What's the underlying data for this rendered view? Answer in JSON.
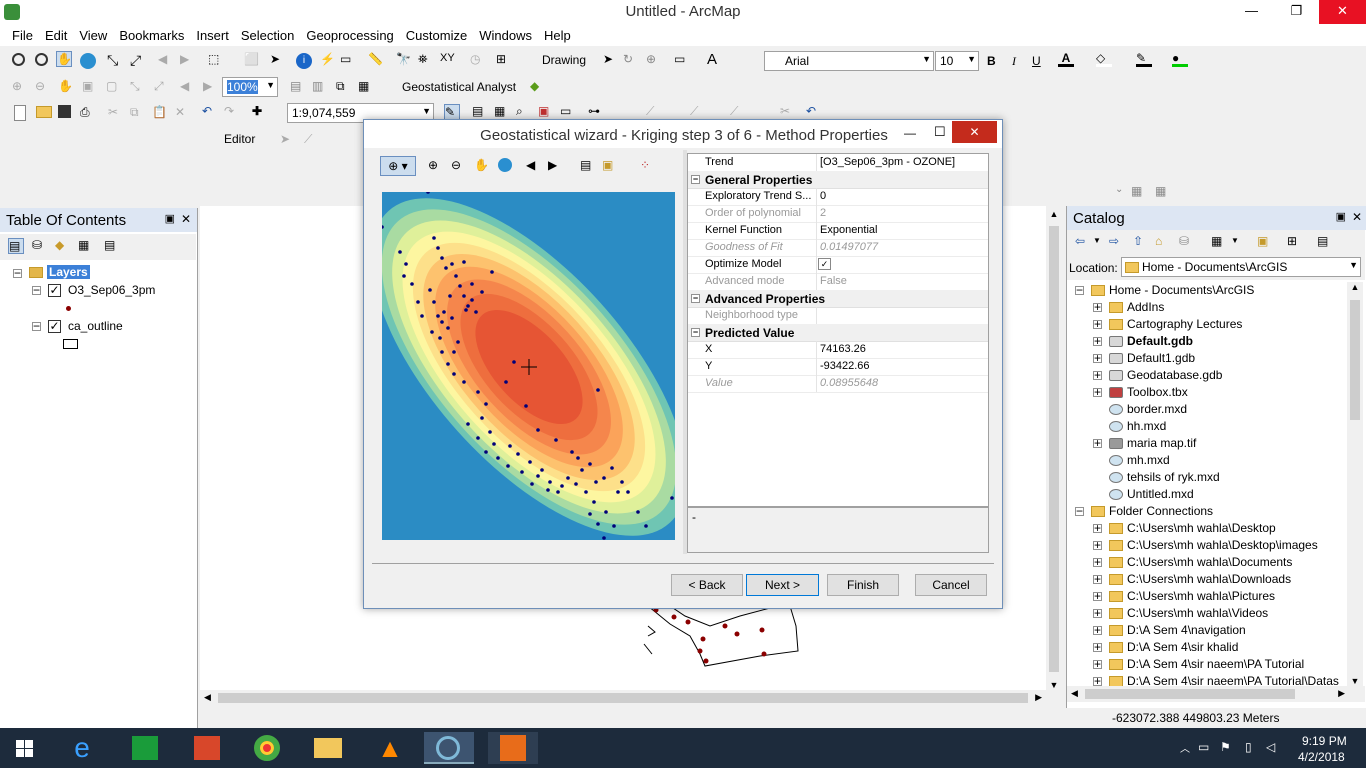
{
  "window": {
    "title": "Untitled - ArcMap",
    "minimize": "—",
    "maximize": "❐",
    "close": "✕"
  },
  "menu": [
    "File",
    "Edit",
    "View",
    "Bookmarks",
    "Insert",
    "Selection",
    "Geoprocessing",
    "Customize",
    "Windows",
    "Help"
  ],
  "toolbar": {
    "drawing_label": "Drawing",
    "font_name": "Arial",
    "font_size": "10",
    "bold": "B",
    "italic": "I",
    "underline": "U",
    "text_tool": "A",
    "zoom_pct": "100%",
    "geostat_label": "Geostatistical Analyst",
    "scale": "1:9,074,559",
    "editor_label": "Editor"
  },
  "toc": {
    "title": "Table Of Contents",
    "pin": "▣",
    "close": "✕",
    "root": "Layers",
    "layers": [
      {
        "name": "O3_Sep06_3pm",
        "checked": true
      },
      {
        "name": "ca_outline",
        "checked": true
      }
    ]
  },
  "dialog": {
    "title": "Geostatistical wizard - Kriging step 3 of 6 - Method Properties",
    "min": "—",
    "max": "☐",
    "close": "✕",
    "properties": [
      {
        "type": "row",
        "key": "Trend",
        "value": "[O3_Sep06_3pm - OZONE]"
      },
      {
        "type": "header",
        "key": "General Properties"
      },
      {
        "type": "row",
        "key": "Exploratory Trend S...",
        "value": "0"
      },
      {
        "type": "dis",
        "key": "Order of polynomial",
        "value": "2"
      },
      {
        "type": "row",
        "key": "Kernel Function",
        "value": "Exponential"
      },
      {
        "type": "disi",
        "key": "Goodness of Fit",
        "value": "0.01497077"
      },
      {
        "type": "row",
        "key": "Optimize Model",
        "value": ""
      },
      {
        "type": "dis",
        "key": "Advanced mode",
        "value": "False"
      },
      {
        "type": "header",
        "key": "Advanced Properties"
      },
      {
        "type": "dis",
        "key": "Neighborhood type",
        "value": ""
      },
      {
        "type": "header",
        "key": "Predicted Value"
      },
      {
        "type": "row",
        "key": "X",
        "value": "74163.26"
      },
      {
        "type": "row",
        "key": "Y",
        "value": "-93422.66"
      },
      {
        "type": "disi",
        "key": "Value",
        "value": "0.08955648"
      }
    ],
    "description": "-",
    "buttons": {
      "back": "< Back",
      "next": "Next >",
      "finish": "Finish",
      "cancel": "Cancel"
    }
  },
  "catalog": {
    "title": "Catalog",
    "pin": "▣",
    "close": "✕",
    "location_label": "Location:",
    "location_value": "Home - Documents\\ArcGIS",
    "home": "Home - Documents\\ArcGIS",
    "items": [
      "AddIns",
      "Cartography Lectures",
      "Default.gdb",
      "Default1.gdb",
      "Geodatabase.gdb",
      "Toolbox.tbx",
      "border.mxd",
      "hh.mxd",
      "maria map.tif",
      "mh.mxd",
      "tehsils of ryk.mxd",
      "Untitled.mxd"
    ],
    "folder_connections": "Folder Connections",
    "folders": [
      "C:\\Users\\mh wahla\\Desktop",
      "C:\\Users\\mh wahla\\Desktop\\images",
      "C:\\Users\\mh wahla\\Documents",
      "C:\\Users\\mh wahla\\Downloads",
      "C:\\Users\\mh wahla\\Pictures",
      "C:\\Users\\mh wahla\\Videos",
      "D:\\A  Sem 4\\navigation",
      "D:\\A  Sem 4\\sir khalid",
      "D:\\A  Sem 4\\sir naeem\\PA Tutorial",
      "D:\\A  Sem 4\\sir naeem\\PA Tutorial\\Datas"
    ]
  },
  "status": {
    "coords": "-623072.388  449803.23 Meters"
  },
  "taskbar": {
    "time": "9:19 PM",
    "date": "4/2/2018",
    "apps": [
      "ie-icon",
      "store-icon",
      "office-icon",
      "chrome-icon",
      "explorer-icon",
      "vlc-icon",
      "arcmap-icon",
      "pdf-icon"
    ]
  }
}
